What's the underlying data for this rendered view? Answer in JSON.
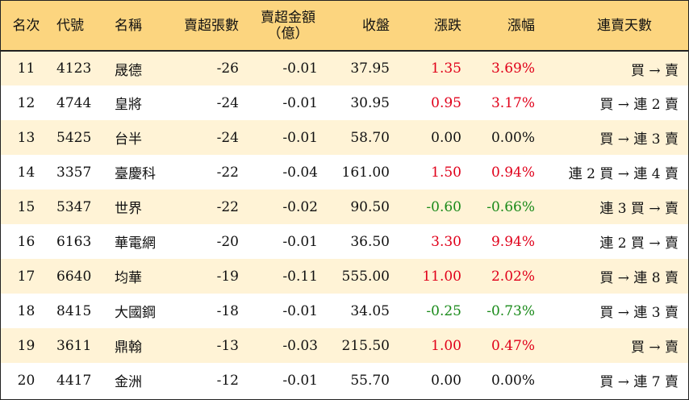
{
  "headers": {
    "rank": "名次",
    "code": "代號",
    "name": "名稱",
    "sell_shares": "賣超張數",
    "sell_amount_line1": "賣超金額",
    "sell_amount_line2": "（億）",
    "close": "收盤",
    "change": "漲跌",
    "change_pct": "漲幅",
    "consecutive_days": "連賣天數"
  },
  "colors": {
    "header_bg": "#fcd57f",
    "stripe_bg": "#fff3d6",
    "up": "#e0001a",
    "down": "#1a8a1a"
  },
  "rows": [
    {
      "rank": "11",
      "code": "4123",
      "name": "晟德",
      "sell_shares": "-26",
      "sell_amount": "-0.01",
      "close": "37.95",
      "change": "1.35",
      "change_pct": "3.69%",
      "direction": "up",
      "days": "買 → 賣"
    },
    {
      "rank": "12",
      "code": "4744",
      "name": "皇將",
      "sell_shares": "-24",
      "sell_amount": "-0.01",
      "close": "30.95",
      "change": "0.95",
      "change_pct": "3.17%",
      "direction": "up",
      "days": "買 → 連 2 賣"
    },
    {
      "rank": "13",
      "code": "5425",
      "name": "台半",
      "sell_shares": "-24",
      "sell_amount": "-0.01",
      "close": "58.70",
      "change": "0.00",
      "change_pct": "0.00%",
      "direction": "flat",
      "days": "買 → 連 3 賣"
    },
    {
      "rank": "14",
      "code": "3357",
      "name": "臺慶科",
      "sell_shares": "-22",
      "sell_amount": "-0.04",
      "close": "161.00",
      "change": "1.50",
      "change_pct": "0.94%",
      "direction": "up",
      "days": "連 2 買 → 連 4 賣"
    },
    {
      "rank": "15",
      "code": "5347",
      "name": "世界",
      "sell_shares": "-22",
      "sell_amount": "-0.02",
      "close": "90.50",
      "change": "-0.60",
      "change_pct": "-0.66%",
      "direction": "down",
      "days": "連 3 買 → 賣"
    },
    {
      "rank": "16",
      "code": "6163",
      "name": "華電網",
      "sell_shares": "-20",
      "sell_amount": "-0.01",
      "close": "36.50",
      "change": "3.30",
      "change_pct": "9.94%",
      "direction": "up",
      "days": "連 2 買 → 賣"
    },
    {
      "rank": "17",
      "code": "6640",
      "name": "均華",
      "sell_shares": "-19",
      "sell_amount": "-0.11",
      "close": "555.00",
      "change": "11.00",
      "change_pct": "2.02%",
      "direction": "up",
      "days": "買 → 連 8 賣"
    },
    {
      "rank": "18",
      "code": "8415",
      "name": "大國鋼",
      "sell_shares": "-18",
      "sell_amount": "-0.01",
      "close": "34.05",
      "change": "-0.25",
      "change_pct": "-0.73%",
      "direction": "down",
      "days": "買 → 連 3 賣"
    },
    {
      "rank": "19",
      "code": "3611",
      "name": "鼎翰",
      "sell_shares": "-13",
      "sell_amount": "-0.03",
      "close": "215.50",
      "change": "1.00",
      "change_pct": "0.47%",
      "direction": "up",
      "days": "買 → 賣"
    },
    {
      "rank": "20",
      "code": "4417",
      "name": "金洲",
      "sell_shares": "-12",
      "sell_amount": "-0.01",
      "close": "55.70",
      "change": "0.00",
      "change_pct": "0.00%",
      "direction": "flat",
      "days": "買 → 連 7 賣"
    }
  ]
}
